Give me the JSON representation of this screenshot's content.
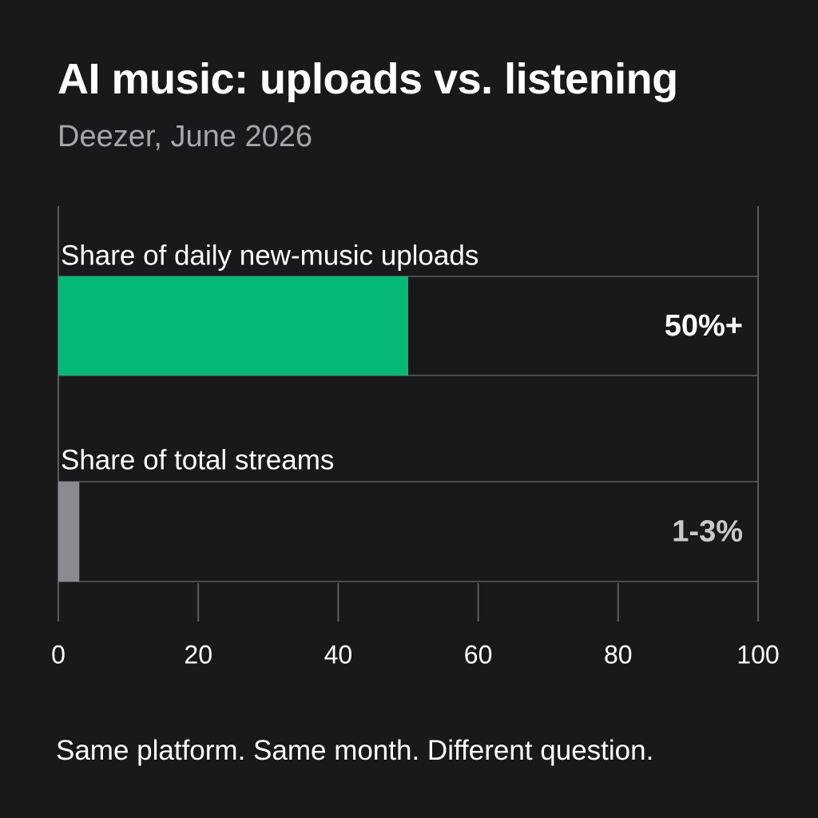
{
  "header": {
    "title": "AI music: uploads vs. listening",
    "subtitle": "Deezer, June 2026"
  },
  "footnote": "Same platform. Same month. Different question.",
  "colors": {
    "background": "#19181b",
    "uploads_bar": "#06b876",
    "streams_bar": "#8a8a90",
    "gridline": "#5c5b61",
    "value_label_muted": "#c9c9cc"
  },
  "chart_data": {
    "type": "bar",
    "orientation": "horizontal",
    "categories": [
      "Share of daily new-music uploads",
      "Share of total streams"
    ],
    "values": [
      50,
      3
    ],
    "value_labels": [
      "50%+",
      "1-3%"
    ],
    "xlim": [
      0,
      100
    ],
    "xticks": [
      "0",
      "20",
      "40",
      "60",
      "80",
      "100"
    ],
    "grid": true,
    "legend": "none"
  }
}
